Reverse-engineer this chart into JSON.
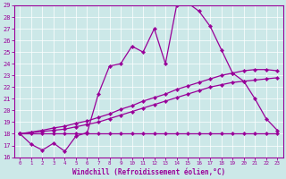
{
  "xlabel": "Windchill (Refroidissement éolien,°C)",
  "xlim": [
    -0.5,
    23.5
  ],
  "ylim": [
    16,
    29
  ],
  "xticks": [
    0,
    1,
    2,
    3,
    4,
    5,
    6,
    7,
    8,
    9,
    10,
    11,
    12,
    13,
    14,
    15,
    16,
    17,
    18,
    19,
    20,
    21,
    22,
    23
  ],
  "yticks": [
    16,
    17,
    18,
    19,
    20,
    21,
    22,
    23,
    24,
    25,
    26,
    27,
    28,
    29
  ],
  "bg_color": "#cce8e8",
  "line_color": "#990099",
  "grid_color": "#ffffff",
  "line1_x": [
    0,
    1,
    2,
    3,
    4,
    5,
    6,
    7,
    8,
    9,
    10,
    11,
    12,
    13,
    14,
    15,
    16,
    17,
    18,
    19,
    20,
    21,
    22,
    23
  ],
  "line1_y": [
    18.0,
    17.1,
    16.6,
    17.2,
    16.5,
    17.8,
    18.1,
    21.4,
    23.8,
    24.0,
    25.5,
    25.0,
    27.0,
    24.0,
    29.0,
    29.2,
    28.5,
    27.2,
    25.2,
    23.2,
    22.5,
    21.0,
    19.3,
    18.3
  ],
  "line2_x": [
    0,
    1,
    2,
    3,
    4,
    5,
    6,
    7,
    8,
    9,
    10,
    11,
    12,
    13,
    14,
    15,
    16,
    17,
    18,
    19,
    20,
    21,
    22,
    23
  ],
  "line2_y": [
    18.0,
    18.0,
    18.0,
    18.0,
    18.0,
    18.0,
    18.0,
    18.0,
    18.0,
    18.0,
    18.0,
    18.0,
    18.0,
    18.0,
    18.0,
    18.0,
    18.0,
    18.0,
    18.0,
    18.0,
    18.0,
    18.0,
    18.0,
    18.0
  ],
  "line3_x": [
    0,
    1,
    2,
    3,
    4,
    5,
    6,
    7,
    8,
    9,
    10,
    11,
    12,
    13,
    14,
    15,
    16,
    17,
    18,
    19,
    20,
    21,
    22,
    23
  ],
  "line3_y": [
    18.0,
    18.1,
    18.2,
    18.3,
    18.4,
    18.6,
    18.8,
    19.0,
    19.3,
    19.6,
    19.9,
    20.2,
    20.5,
    20.8,
    21.1,
    21.4,
    21.7,
    22.0,
    22.2,
    22.4,
    22.5,
    22.6,
    22.7,
    22.8
  ],
  "line4_x": [
    0,
    1,
    2,
    3,
    4,
    5,
    6,
    7,
    8,
    9,
    10,
    11,
    12,
    13,
    14,
    15,
    16,
    17,
    18,
    19,
    20,
    21,
    22,
    23
  ],
  "line4_y": [
    18.0,
    18.15,
    18.3,
    18.5,
    18.65,
    18.9,
    19.1,
    19.4,
    19.7,
    20.1,
    20.4,
    20.8,
    21.1,
    21.4,
    21.8,
    22.1,
    22.4,
    22.7,
    23.0,
    23.2,
    23.4,
    23.5,
    23.5,
    23.4
  ]
}
